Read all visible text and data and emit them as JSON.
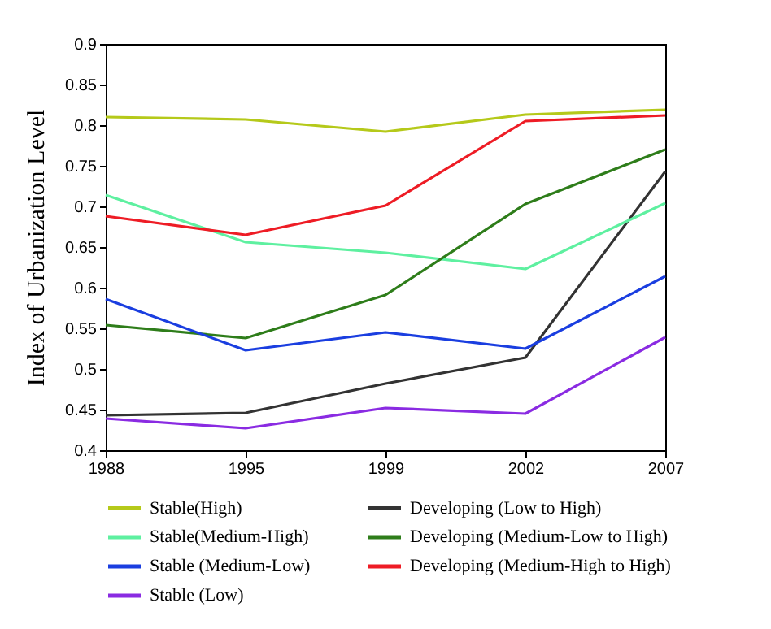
{
  "chart_data": {
    "type": "line",
    "ylabel": "Index of Urbanization Level",
    "categories": [
      "1988",
      "1995",
      "1999",
      "2002",
      "2007"
    ],
    "ylim": [
      0.4,
      0.9
    ],
    "yticks": [
      0.4,
      0.45,
      0.5,
      0.55,
      0.6,
      0.65,
      0.7,
      0.75,
      0.8,
      0.85,
      0.9
    ],
    "grid": false,
    "legend": "bottom",
    "marker": "none",
    "line_style": "solid",
    "series": [
      {
        "name": "Stable(High)",
        "color": "#b5c91a",
        "values": [
          0.81,
          0.807,
          0.792,
          0.813,
          0.819
        ]
      },
      {
        "name": "Developing (Low to High)",
        "color": "#333333",
        "values": [
          0.443,
          0.446,
          0.482,
          0.514,
          0.743
        ]
      },
      {
        "name": "Stable(Medium-High)",
        "color": "#5ef0a0",
        "values": [
          0.714,
          0.656,
          0.643,
          0.623,
          0.704
        ]
      },
      {
        "name": "Developing (Medium-Low to High)",
        "color": "#2e7d1a",
        "values": [
          0.554,
          0.538,
          0.591,
          0.703,
          0.77
        ]
      },
      {
        "name": "Stable (Medium-Low)",
        "color": "#1a3ee0",
        "values": [
          0.586,
          0.523,
          0.545,
          0.525,
          0.614
        ]
      },
      {
        "name": "Developing (Medium-High to High)",
        "color": "#ee1c25",
        "values": [
          0.688,
          0.665,
          0.701,
          0.805,
          0.812
        ]
      },
      {
        "name": "Stable (Low)",
        "color": "#8a2be2",
        "values": [
          0.439,
          0.427,
          0.452,
          0.445,
          0.539
        ]
      }
    ]
  }
}
